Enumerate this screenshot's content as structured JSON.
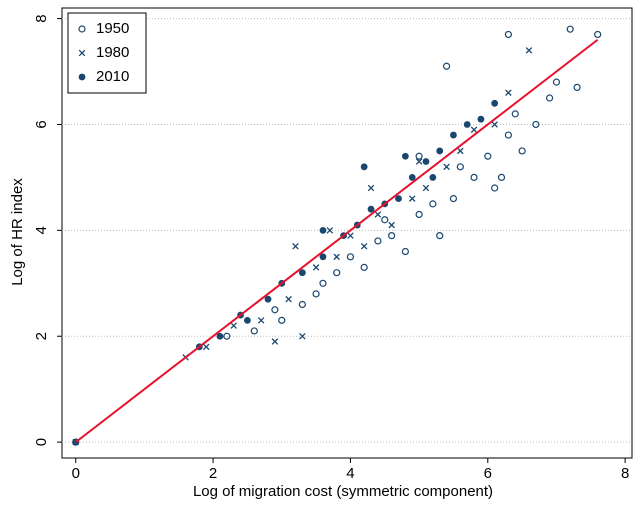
{
  "chart_data": {
    "type": "scatter",
    "xlabel": "Log of migration cost (symmetric component)",
    "ylabel": "Log of HR index",
    "xlim": [
      -0.2,
      8.1
    ],
    "ylim": [
      -0.3,
      8.2
    ],
    "xticks": [
      0,
      2,
      4,
      6,
      8
    ],
    "yticks": [
      0,
      2,
      4,
      6,
      8
    ],
    "grid": true,
    "legend": "upper-left",
    "series": [
      {
        "name": "1950",
        "color": "#1a476f",
        "marker": "circle-open",
        "x": [
          0,
          2.2,
          2.6,
          3.0,
          3.3,
          3.6,
          3.8,
          4.0,
          4.2,
          4.4,
          4.6,
          4.8,
          5.0,
          5.2,
          5.3,
          5.5,
          5.6,
          5.8,
          6.0,
          6.1,
          6.3,
          6.4,
          6.5,
          6.7,
          6.9,
          7.0,
          7.2,
          7.3,
          7.6,
          6.3,
          5.4,
          6.2,
          5.0,
          4.5,
          3.5,
          2.9
        ],
        "values": [
          0,
          2.0,
          2.1,
          2.3,
          2.6,
          3.0,
          3.2,
          3.5,
          3.3,
          3.8,
          3.9,
          3.6,
          4.3,
          4.5,
          3.9,
          4.6,
          5.2,
          5.0,
          5.4,
          4.8,
          5.8,
          6.2,
          5.5,
          6.0,
          6.5,
          6.8,
          7.8,
          6.7,
          7.7,
          7.7,
          7.1,
          5.0,
          5.4,
          4.2,
          2.8,
          2.5
        ]
      },
      {
        "name": "1980",
        "color": "#1a476f",
        "marker": "x",
        "x": [
          0,
          1.6,
          1.9,
          2.3,
          2.7,
          3.1,
          3.3,
          3.5,
          3.8,
          4.0,
          4.2,
          4.4,
          4.6,
          4.9,
          5.1,
          5.4,
          5.6,
          5.8,
          6.1,
          6.3,
          6.6,
          3.2,
          4.3,
          2.9,
          5.0,
          3.7
        ],
        "values": [
          0,
          1.6,
          1.8,
          2.2,
          2.3,
          2.7,
          2.0,
          3.3,
          3.5,
          3.9,
          3.7,
          4.3,
          4.1,
          4.6,
          4.8,
          5.2,
          5.5,
          5.9,
          6.0,
          6.6,
          7.4,
          3.7,
          4.8,
          1.9,
          5.3,
          4.0
        ]
      },
      {
        "name": "2010",
        "color": "#1a476f",
        "marker": "circle",
        "x": [
          0,
          1.8,
          2.1,
          2.4,
          2.8,
          3.0,
          3.3,
          3.6,
          3.9,
          4.1,
          4.3,
          4.5,
          4.7,
          4.9,
          5.1,
          5.3,
          5.5,
          5.7,
          5.9,
          6.1,
          4.2,
          3.6,
          4.8,
          2.5,
          5.2
        ],
        "values": [
          0,
          1.8,
          2.0,
          2.4,
          2.7,
          3.0,
          3.2,
          3.5,
          3.9,
          4.1,
          4.4,
          4.5,
          4.6,
          5.0,
          5.3,
          5.5,
          5.8,
          6.0,
          6.1,
          6.4,
          5.2,
          4.0,
          5.4,
          2.3,
          5.0
        ]
      }
    ],
    "fit_line": {
      "color": "#e8112d",
      "x": [
        0,
        7.6
      ],
      "y": [
        0,
        7.6
      ]
    }
  }
}
